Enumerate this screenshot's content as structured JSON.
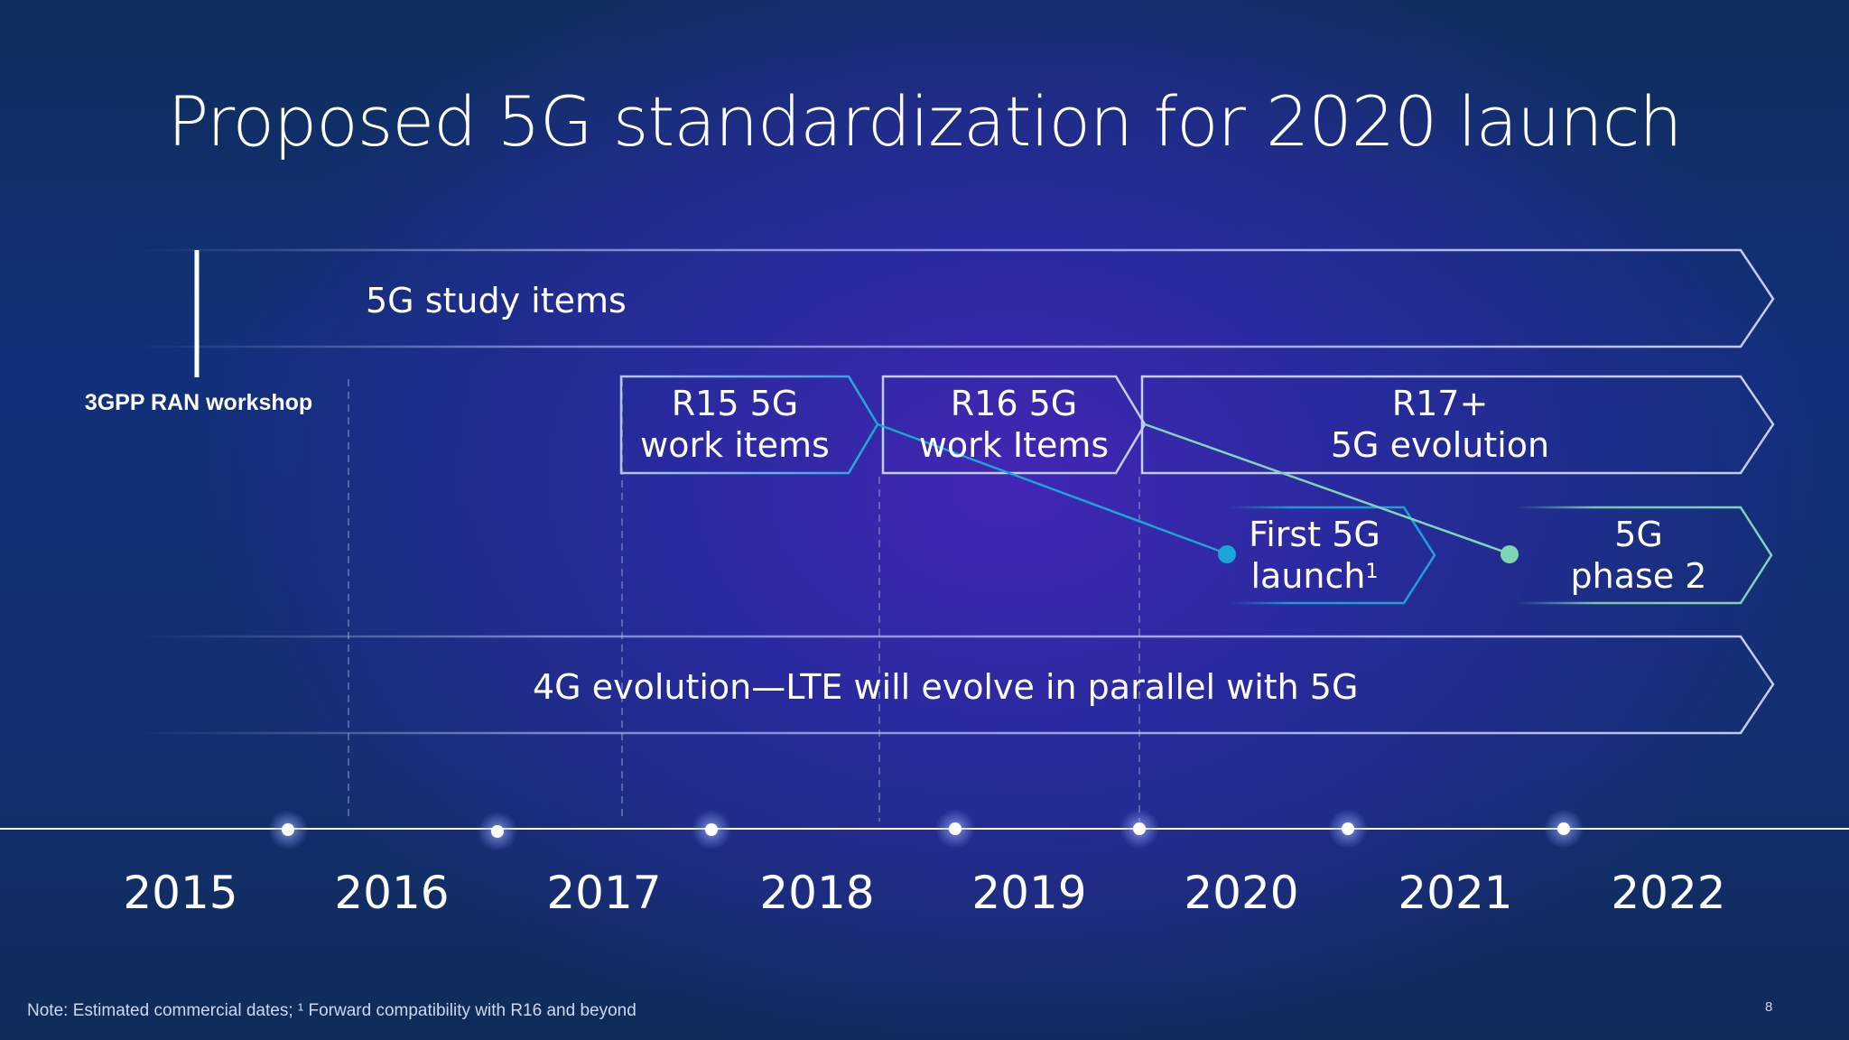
{
  "title": "Proposed 5G standardization for 2020 launch",
  "tracks": {
    "study_items": "5G study items",
    "r15_line1": "R15 5G",
    "r15_line2": "work items",
    "r16_line1": "R16 5G",
    "r16_line2": "work Items",
    "r17_line1": "R17+",
    "r17_line2": "5G evolution",
    "first_launch_line1": "First 5G",
    "first_launch_line2": "launch",
    "first_launch_sup": "1",
    "phase2_line1": "5G",
    "phase2_line2": "phase 2",
    "lte": "4G evolution—LTE will evolve in parallel with 5G"
  },
  "milestone": "3GPP RAN workshop",
  "years": [
    "2015",
    "2016",
    "2017",
    "2018",
    "2019",
    "2020",
    "2021",
    "2022"
  ],
  "footnote": "Note: Estimated commercial dates; ¹ Forward compatibility with R16 and beyond",
  "page_number": "8",
  "colors": {
    "r15_connector": "#1aa6d6",
    "r17_connector": "#7fd6b2",
    "timeline": "#ffffff",
    "grey_outline": "#b9c3ee"
  }
}
